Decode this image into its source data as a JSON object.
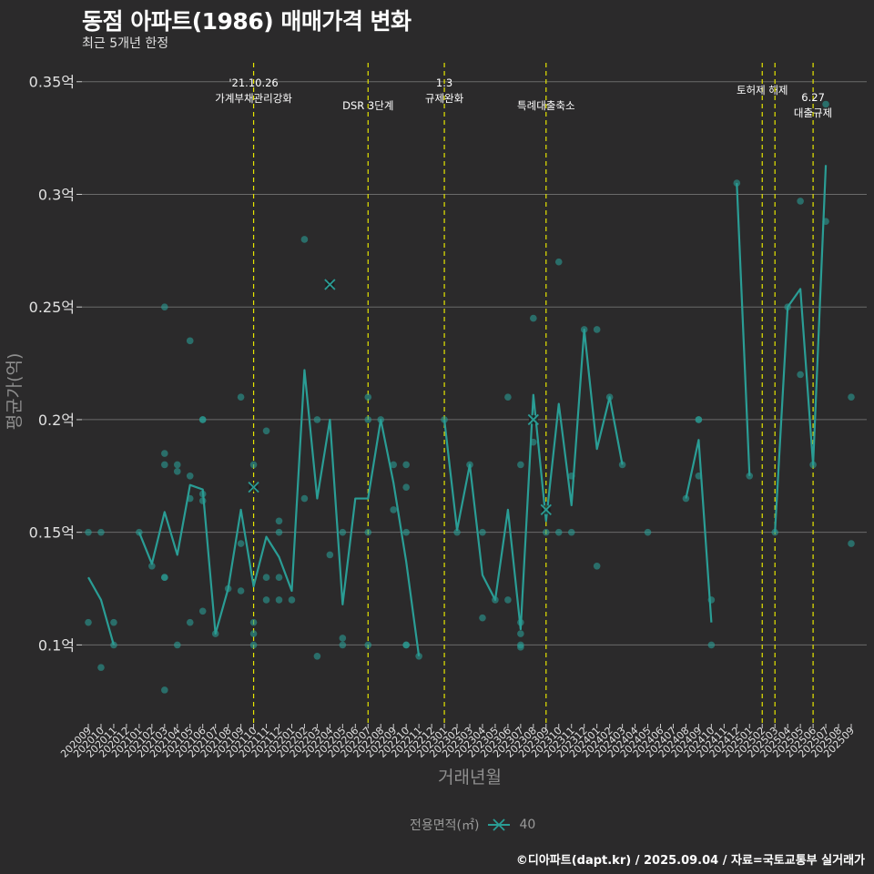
{
  "title": "동점 아파트(1986) 매매가격 변화",
  "subtitle": "최근 5개년 한정",
  "caption": "©디아파트(dapt.kr) / 2025.09.04 / 자료=국토교통부 실거래가",
  "colors": {
    "background": "#2b2a2b",
    "series": "#2a9d95",
    "grid": "#6b6b6b",
    "event_line": "#e6e600",
    "text": "#e0e0e0",
    "axis_title": "#8f8f8f"
  },
  "chart_data": {
    "type": "line",
    "title": "동점 아파트(1986) 매매가격 변화",
    "subtitle": "최근 5개년 한정",
    "xlabel": "거래년월",
    "ylabel": "평균가(억)",
    "ylim": [
      0.065,
      0.36
    ],
    "yticks": [
      0.1,
      0.15,
      0.2,
      0.25,
      0.3,
      0.35
    ],
    "ytick_labels": [
      "0.1억",
      "0.15억",
      "0.2억",
      "0.25억",
      "0.3억",
      "0.35억"
    ],
    "grid": true,
    "legend_position": "bottom",
    "legend_title": "전용면적(㎡)",
    "categories": [
      "202009",
      "202010",
      "202011",
      "202012",
      "202101",
      "202102",
      "202103",
      "202104",
      "202105",
      "202106",
      "202107",
      "202108",
      "202109",
      "202110",
      "202111",
      "202112",
      "202201",
      "202202",
      "202203",
      "202204",
      "202205",
      "202206",
      "202207",
      "202208",
      "202209",
      "202210",
      "202211",
      "202212",
      "202301",
      "202302",
      "202303",
      "202304",
      "202305",
      "202306",
      "202307",
      "202308",
      "202309",
      "202310",
      "202311",
      "202312",
      "202401",
      "202402",
      "202403",
      "202404",
      "202405",
      "202406",
      "202407",
      "202408",
      "202409",
      "202410",
      "202411",
      "202412",
      "202501",
      "202502",
      "202503",
      "202504",
      "202505",
      "202506",
      "202507",
      "202508",
      "202509"
    ],
    "series": [
      {
        "name": "40",
        "line": [
          [
            "202009",
            0.13
          ],
          [
            "202010",
            0.12
          ],
          [
            "202011",
            0.1
          ],
          null,
          [
            "202101",
            0.15
          ],
          [
            "202102",
            0.136
          ],
          [
            "202103",
            0.159
          ],
          [
            "202104",
            0.14
          ],
          [
            "202105",
            0.171
          ],
          [
            "202106",
            0.169
          ],
          [
            "202107",
            0.105
          ],
          [
            "202108",
            0.125
          ],
          [
            "202109",
            0.16
          ],
          [
            "202110",
            0.126
          ],
          [
            "202111",
            0.148
          ],
          [
            "202112",
            0.139
          ],
          [
            "202201",
            0.124
          ],
          [
            "202202",
            0.222
          ],
          [
            "202203",
            0.165
          ],
          [
            "202204",
            0.2
          ],
          [
            "202205",
            0.118
          ],
          [
            "202206",
            0.165
          ],
          [
            "202207",
            0.165
          ],
          [
            "202208",
            0.2
          ],
          [
            "202209",
            0.172
          ],
          [
            "202210",
            0.137
          ],
          [
            "202211",
            0.095
          ],
          null,
          [
            "202301",
            0.2
          ],
          [
            "202302",
            0.151
          ],
          [
            "202303",
            0.18
          ],
          [
            "202304",
            0.131
          ],
          [
            "202305",
            0.12
          ],
          [
            "202306",
            0.16
          ],
          [
            "202307",
            0.107
          ],
          [
            "202308",
            0.211
          ],
          [
            "202309",
            0.155
          ],
          [
            "202310",
            0.207
          ],
          [
            "202311",
            0.162
          ],
          [
            "202312",
            0.24
          ],
          [
            "202401",
            0.187
          ],
          [
            "202402",
            0.21
          ],
          [
            "202403",
            0.18
          ],
          null,
          [
            "202408",
            0.165
          ],
          [
            "202409",
            0.191
          ],
          [
            "202410",
            0.11
          ],
          null,
          [
            "202412",
            0.305
          ],
          [
            "202501",
            0.175
          ],
          null,
          [
            "202503",
            0.15
          ],
          [
            "202504",
            0.25
          ],
          [
            "202505",
            0.258
          ],
          [
            "202506",
            0.18
          ],
          [
            "202507",
            0.313
          ]
        ],
        "points": [
          [
            "202009",
            0.15
          ],
          [
            "202009",
            0.11
          ],
          [
            "202010",
            0.15
          ],
          [
            "202010",
            0.09
          ],
          [
            "202011",
            0.11
          ],
          [
            "202011",
            0.1
          ],
          [
            "202101",
            0.15
          ],
          [
            "202102",
            0.135
          ],
          [
            "202103",
            0.25
          ],
          [
            "202103",
            0.185
          ],
          [
            "202103",
            0.18
          ],
          [
            "202103",
            0.13
          ],
          [
            "202103",
            0.13
          ],
          [
            "202103",
            0.08
          ],
          [
            "202104",
            0.18
          ],
          [
            "202104",
            0.177
          ],
          [
            "202104",
            0.1
          ],
          [
            "202105",
            0.235
          ],
          [
            "202105",
            0.175
          ],
          [
            "202105",
            0.165
          ],
          [
            "202105",
            0.11
          ],
          [
            "202106",
            0.2
          ],
          [
            "202106",
            0.2
          ],
          [
            "202106",
            0.167
          ],
          [
            "202106",
            0.164
          ],
          [
            "202106",
            0.115
          ],
          [
            "202107",
            0.105
          ],
          [
            "202108",
            0.125
          ],
          [
            "202109",
            0.21
          ],
          [
            "202109",
            0.145
          ],
          [
            "202109",
            0.124
          ],
          [
            "202110",
            0.18
          ],
          [
            "202110",
            0.11
          ],
          [
            "202110",
            0.105
          ],
          [
            "202110",
            0.1
          ],
          [
            "202111",
            0.195
          ],
          [
            "202111",
            0.13
          ],
          [
            "202111",
            0.12
          ],
          [
            "202112",
            0.155
          ],
          [
            "202112",
            0.15
          ],
          [
            "202112",
            0.13
          ],
          [
            "202112",
            0.12
          ],
          [
            "202201",
            0.12
          ],
          [
            "202202",
            0.28
          ],
          [
            "202202",
            0.165
          ],
          [
            "202203",
            0.2
          ],
          [
            "202203",
            0.095
          ],
          [
            "202204",
            0.14
          ],
          [
            "202205",
            0.15
          ],
          [
            "202205",
            0.103
          ],
          [
            "202205",
            0.1
          ],
          [
            "202207",
            0.21
          ],
          [
            "202207",
            0.2
          ],
          [
            "202207",
            0.15
          ],
          [
            "202207",
            0.1
          ],
          [
            "202208",
            0.2
          ],
          [
            "202209",
            0.18
          ],
          [
            "202209",
            0.16
          ],
          [
            "202210",
            0.18
          ],
          [
            "202210",
            0.17
          ],
          [
            "202210",
            0.15
          ],
          [
            "202210",
            0.1
          ],
          [
            "202210",
            0.1
          ],
          [
            "202211",
            0.095
          ],
          [
            "202301",
            0.2
          ],
          [
            "202302",
            0.15
          ],
          [
            "202303",
            0.18
          ],
          [
            "202304",
            0.15
          ],
          [
            "202304",
            0.112
          ],
          [
            "202305",
            0.12
          ],
          [
            "202306",
            0.21
          ],
          [
            "202306",
            0.12
          ],
          [
            "202307",
            0.18
          ],
          [
            "202307",
            0.11
          ],
          [
            "202307",
            0.105
          ],
          [
            "202307",
            0.1
          ],
          [
            "202307",
            0.099
          ],
          [
            "202308",
            0.245
          ],
          [
            "202308",
            0.19
          ],
          [
            "202309",
            0.15
          ],
          [
            "202310",
            0.27
          ],
          [
            "202310",
            0.15
          ],
          [
            "202311",
            0.175
          ],
          [
            "202311",
            0.15
          ],
          [
            "202312",
            0.24
          ],
          [
            "202401",
            0.24
          ],
          [
            "202401",
            0.135
          ],
          [
            "202402",
            0.21
          ],
          [
            "202403",
            0.18
          ],
          [
            "202405",
            0.15
          ],
          [
            "202408",
            0.165
          ],
          [
            "202409",
            0.2
          ],
          [
            "202409",
            0.2
          ],
          [
            "202409",
            0.175
          ],
          [
            "202410",
            0.12
          ],
          [
            "202410",
            0.1
          ],
          [
            "202412",
            0.305
          ],
          [
            "202501",
            0.175
          ],
          [
            "202503",
            0.15
          ],
          [
            "202504",
            0.25
          ],
          [
            "202505",
            0.297
          ],
          [
            "202505",
            0.22
          ],
          [
            "202506",
            0.18
          ],
          [
            "202507",
            0.34
          ],
          [
            "202507",
            0.288
          ],
          [
            "202509",
            0.21
          ],
          [
            "202509",
            0.145
          ]
        ],
        "crosses": [
          [
            "202110",
            0.17
          ],
          [
            "202204",
            0.26
          ],
          [
            "202308",
            0.2
          ],
          [
            "202309",
            0.16
          ]
        ]
      }
    ],
    "annotations": [
      {
        "x": "202110",
        "label_lines": [
          "'21.10.26",
          "가계부채관리강화"
        ]
      },
      {
        "x": "202207",
        "label_lines": [
          "DSR 3단계"
        ]
      },
      {
        "x": "202301",
        "label_lines": [
          "1.3",
          "규제완화"
        ]
      },
      {
        "x": "202309",
        "label_lines": [
          "특례대출축소"
        ]
      },
      {
        "x": "202502",
        "label_lines": [
          "토허제 해제"
        ]
      },
      {
        "x": "202503",
        "label_lines": []
      },
      {
        "x": "202506",
        "label_lines": [
          "6.27",
          "대출규제"
        ]
      }
    ]
  }
}
